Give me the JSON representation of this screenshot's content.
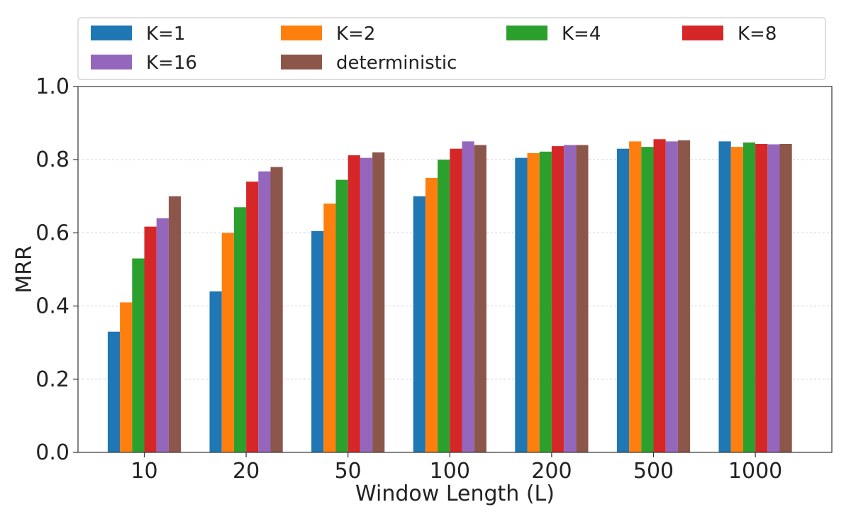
{
  "chart_data": {
    "type": "bar",
    "title": "",
    "xlabel": "Window Length (L)",
    "ylabel": "MRR",
    "ylim": [
      0,
      1.0
    ],
    "yticks": [
      "0.0",
      "0.2",
      "0.4",
      "0.6",
      "0.8",
      "1.0"
    ],
    "grid": "horizontal dashed",
    "legend_position": "top",
    "categories": [
      "10",
      "20",
      "50",
      "100",
      "200",
      "500",
      "1000"
    ],
    "series": [
      {
        "name": "K=1",
        "color": "#1f77b4",
        "values": [
          0.33,
          0.44,
          0.605,
          0.7,
          0.805,
          0.83,
          0.85
        ]
      },
      {
        "name": "K=2",
        "color": "#ff7f0e",
        "values": [
          0.41,
          0.6,
          0.68,
          0.75,
          0.818,
          0.85,
          0.835
        ]
      },
      {
        "name": "K=4",
        "color": "#2ca02c",
        "values": [
          0.53,
          0.67,
          0.745,
          0.8,
          0.822,
          0.835,
          0.847
        ]
      },
      {
        "name": "K=8",
        "color": "#d62728",
        "values": [
          0.617,
          0.74,
          0.812,
          0.83,
          0.837,
          0.856,
          0.843
        ]
      },
      {
        "name": "K=16",
        "color": "#9467bd",
        "values": [
          0.64,
          0.768,
          0.805,
          0.85,
          0.84,
          0.85,
          0.842
        ]
      },
      {
        "name": "deterministic",
        "color": "#8c564b",
        "values": [
          0.7,
          0.78,
          0.82,
          0.84,
          0.84,
          0.853,
          0.843
        ]
      }
    ]
  }
}
